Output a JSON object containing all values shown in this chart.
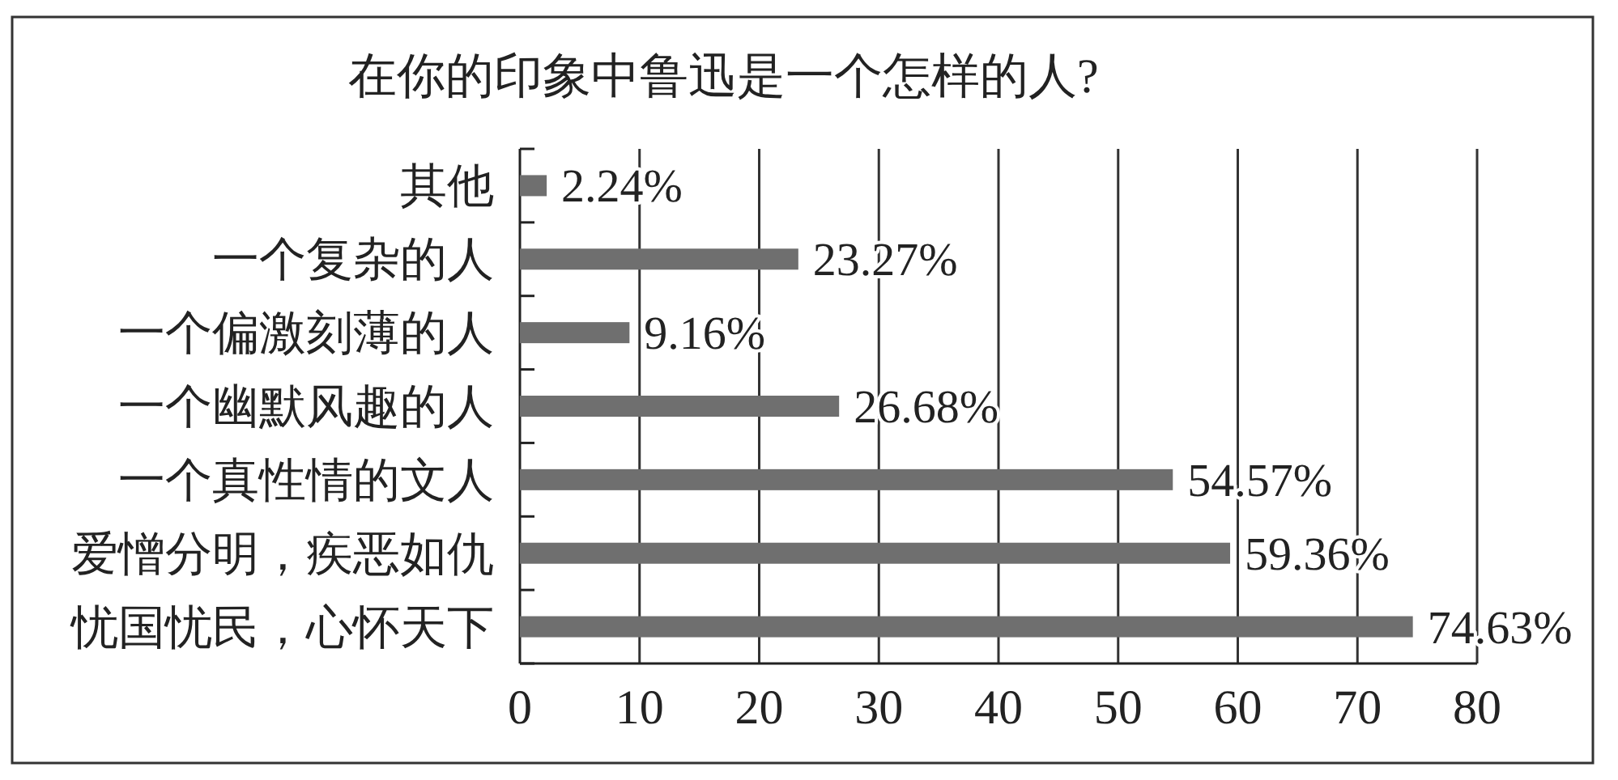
{
  "chart_data": {
    "type": "bar",
    "orientation": "horizontal",
    "title": "在你的印象中鲁迅是一个怎样的人?",
    "categories": [
      "其他",
      "一个复杂的人",
      "一个偏激刻薄的人",
      "一个幽默风趣的人",
      "一个真性情的文人",
      "爱憎分明，疾恶如仇",
      "忧国忧民，心怀天下"
    ],
    "values": [
      2.24,
      23.27,
      9.16,
      26.68,
      54.57,
      59.36,
      74.63
    ],
    "value_labels": [
      "2.24%",
      "23.27%",
      "9.16%",
      "26.68%",
      "54.57%",
      "59.36%",
      "74.63%"
    ],
    "color": "#6f6f6f",
    "xlim": [
      0,
      80
    ],
    "xticks": [
      0,
      10,
      20,
      30,
      40,
      50,
      60,
      70,
      80
    ],
    "grid": "x"
  }
}
